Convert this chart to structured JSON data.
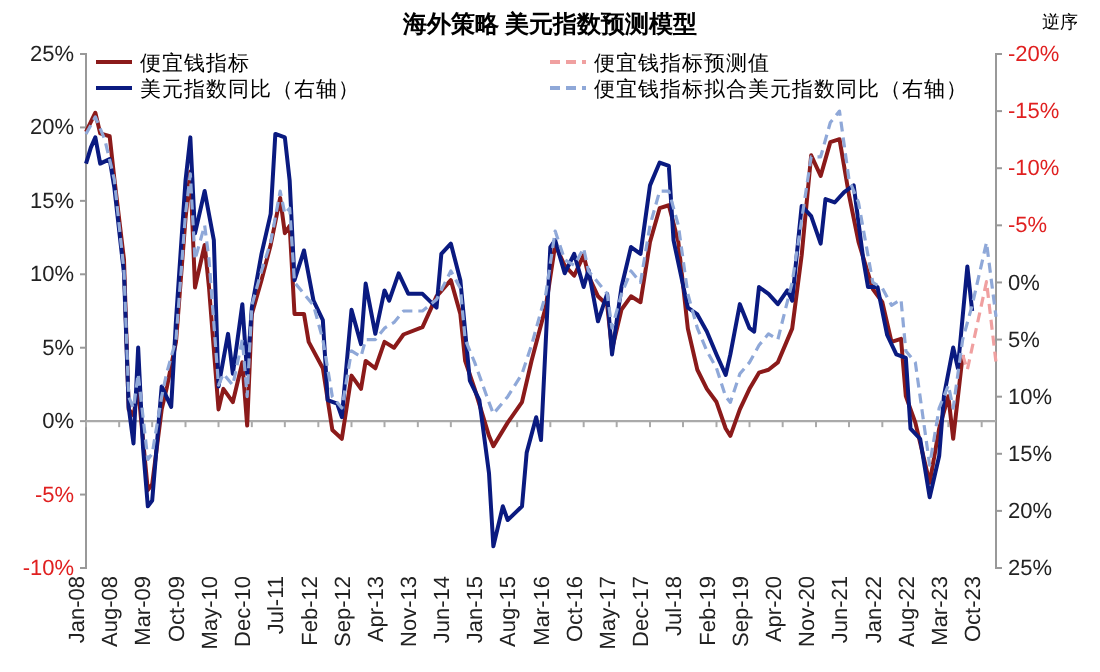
{
  "chart_data": {
    "type": "line",
    "title": "海外策略 美元指数预测模型",
    "y2label": "逆序",
    "legend": "top",
    "grid": false,
    "ref_lines": [
      {
        "axis": "y",
        "value": 0,
        "color": "#aaaaaa"
      }
    ],
    "xlim": [
      "2008-01",
      "2024-01"
    ],
    "xticks": [
      {
        "value": "2008-01",
        "label": "Jan-08"
      },
      {
        "value": "2008-08",
        "label": "Aug-08"
      },
      {
        "value": "2009-03",
        "label": "Mar-09"
      },
      {
        "value": "2009-10",
        "label": "Oct-09"
      },
      {
        "value": "2010-05",
        "label": "May-10"
      },
      {
        "value": "2010-12",
        "label": "Dec-10"
      },
      {
        "value": "2011-07",
        "label": "Jul-11"
      },
      {
        "value": "2012-02",
        "label": "Feb-12"
      },
      {
        "value": "2012-09",
        "label": "Sep-12"
      },
      {
        "value": "2013-04",
        "label": "Apr-13"
      },
      {
        "value": "2013-11",
        "label": "Nov-13"
      },
      {
        "value": "2014-06",
        "label": "Jun-14"
      },
      {
        "value": "2015-01",
        "label": "Jan-15"
      },
      {
        "value": "2015-08",
        "label": "Aug-15"
      },
      {
        "value": "2016-03",
        "label": "Mar-16"
      },
      {
        "value": "2016-10",
        "label": "Oct-16"
      },
      {
        "value": "2017-05",
        "label": "May-17"
      },
      {
        "value": "2017-12",
        "label": "Dec-17"
      },
      {
        "value": "2018-07",
        "label": "Jul-18"
      },
      {
        "value": "2019-02",
        "label": "Feb-19"
      },
      {
        "value": "2019-09",
        "label": "Sep-19"
      },
      {
        "value": "2020-04",
        "label": "Apr-20"
      },
      {
        "value": "2020-11",
        "label": "Nov-20"
      },
      {
        "value": "2021-06",
        "label": "Jun-21"
      },
      {
        "value": "2022-01",
        "label": "Jan-22"
      },
      {
        "value": "2022-08",
        "label": "Aug-22"
      },
      {
        "value": "2023-03",
        "label": "Mar-23"
      },
      {
        "value": "2023-10",
        "label": "Oct-23"
      }
    ],
    "ylim": [
      -10,
      25
    ],
    "yticks": [
      {
        "value": 25,
        "label": "25%"
      },
      {
        "value": 20,
        "label": "20%"
      },
      {
        "value": 15,
        "label": "15%"
      },
      {
        "value": 10,
        "label": "10%"
      },
      {
        "value": 5,
        "label": "5%"
      },
      {
        "value": 0,
        "label": "0%"
      },
      {
        "value": -5,
        "label": "-5%"
      },
      {
        "value": -10,
        "label": "-10%"
      }
    ],
    "y2lim": [
      25,
      -20
    ],
    "y2ticks": [
      {
        "value": -20,
        "label": "-20%"
      },
      {
        "value": -15,
        "label": "-15%"
      },
      {
        "value": -10,
        "label": "-10%"
      },
      {
        "value": -5,
        "label": "-5%"
      },
      {
        "value": 0,
        "label": "0%"
      },
      {
        "value": 5,
        "label": "5%"
      },
      {
        "value": 10,
        "label": "10%"
      },
      {
        "value": 15,
        "label": "15%"
      },
      {
        "value": 20,
        "label": "20%"
      },
      {
        "value": 25,
        "label": "25%"
      }
    ],
    "series": [
      {
        "name": "便宜钱指标",
        "color": "#8b1a1a",
        "line_style": "solid",
        "x": [
          "2008-01",
          "2008-03",
          "2008-04",
          "2008-06",
          "2008-07",
          "2008-09",
          "2008-10",
          "2008-11",
          "2008-12",
          "2009-02",
          "2009-03",
          "2009-05",
          "2009-06",
          "2009-08",
          "2009-10",
          "2009-11",
          "2009-12",
          "2010-02",
          "2010-03",
          "2010-05",
          "2010-06",
          "2010-08",
          "2010-10",
          "2010-11",
          "2010-12",
          "2011-02",
          "2011-04",
          "2011-06",
          "2011-07",
          "2011-08",
          "2011-09",
          "2011-11",
          "2011-12",
          "2012-03",
          "2012-05",
          "2012-07",
          "2012-09",
          "2012-11",
          "2012-12",
          "2013-02",
          "2013-04",
          "2013-06",
          "2013-08",
          "2013-12",
          "2014-03",
          "2014-06",
          "2014-08",
          "2014-09",
          "2014-11",
          "2015-02",
          "2015-03",
          "2015-06",
          "2015-09",
          "2015-11",
          "2016-02",
          "2016-04",
          "2016-06",
          "2016-08",
          "2016-10",
          "2016-11",
          "2017-01",
          "2017-03",
          "2017-04",
          "2017-06",
          "2017-08",
          "2017-10",
          "2017-12",
          "2018-02",
          "2018-04",
          "2018-06",
          "2018-08",
          "2018-10",
          "2018-12",
          "2019-02",
          "2019-04",
          "2019-05",
          "2019-07",
          "2019-09",
          "2019-11",
          "2020-01",
          "2020-03",
          "2020-06",
          "2020-08",
          "2020-10",
          "2020-12",
          "2021-02",
          "2021-04",
          "2021-06",
          "2021-08",
          "2021-11",
          "2022-01",
          "2022-03",
          "2022-05",
          "2022-06",
          "2022-08",
          "2022-11",
          "2023-01",
          "2023-03",
          "2023-04",
          "2023-06"
        ],
        "values": [
          19.7,
          21,
          19.6,
          19.4,
          16.5,
          11,
          0.8,
          0.4,
          2.2,
          -4.7,
          -4.3,
          0.8,
          2.2,
          5.4,
          13.8,
          17,
          9.1,
          12,
          9.1,
          0.8,
          2.2,
          1.3,
          4,
          -0.3,
          7.3,
          9.6,
          12,
          15.2,
          12.8,
          13.3,
          7.3,
          7.3,
          5.4,
          3.6,
          -0.6,
          -1.2,
          3.1,
          2.2,
          4.1,
          3.6,
          5.4,
          5,
          5.9,
          6.4,
          8.5,
          9.6,
          7.3,
          4.1,
          2.2,
          -1,
          -1.7,
          -0.1,
          1.3,
          4.1,
          7.8,
          12,
          10.6,
          9.9,
          11.3,
          9.9,
          8.5,
          7.9,
          4.9,
          7.6,
          8.5,
          8.1,
          12.2,
          14.5,
          14.7,
          12.2,
          6.3,
          3.5,
          2.2,
          1.3,
          -0.5,
          -1,
          0.8,
          2.2,
          3.3,
          3.5,
          4,
          6.3,
          11.3,
          18.1,
          16.7,
          19,
          19.2,
          15.4,
          12.2,
          9,
          8.1,
          5.4,
          5.6,
          1.7,
          -0.1,
          -4.2,
          -0.5,
          1.7,
          -1.2,
          4.5
        ]
      },
      {
        "name": "便宜钱指标预测值",
        "color": "#f0a0a0",
        "line_style": "dashed",
        "x": [
          "2023-06",
          "2023-07",
          "2023-11",
          "2024-01"
        ],
        "values": [
          4.5,
          3.5,
          9.5,
          4
        ]
      },
      {
        "name": "美元指数同比（右轴）",
        "color": "#0a1a80",
        "line_style": "solid",
        "axis": "y2",
        "x": [
          "2008-01",
          "2008-02",
          "2008-03",
          "2008-04",
          "2008-06",
          "2008-07",
          "2008-09",
          "2008-10",
          "2008-11",
          "2008-12",
          "2009-01",
          "2009-02",
          "2009-03",
          "2009-05",
          "2009-07",
          "2009-08",
          "2009-10",
          "2009-11",
          "2009-12",
          "2010-02",
          "2010-04",
          "2010-05",
          "2010-07",
          "2010-08",
          "2010-10",
          "2010-11",
          "2010-12",
          "2011-02",
          "2011-04",
          "2011-05",
          "2011-07",
          "2011-08",
          "2011-09",
          "2011-11",
          "2012-01",
          "2012-03",
          "2012-04",
          "2012-06",
          "2012-07",
          "2012-09",
          "2012-11",
          "2012-12",
          "2013-02",
          "2013-04",
          "2013-05",
          "2013-07",
          "2013-09",
          "2013-12",
          "2014-03",
          "2014-04",
          "2014-06",
          "2014-08",
          "2014-10",
          "2014-12",
          "2015-02",
          "2015-03",
          "2015-05",
          "2015-06",
          "2015-09",
          "2015-10",
          "2015-12",
          "2016-01",
          "2016-03",
          "2016-04",
          "2016-06",
          "2016-08",
          "2016-10",
          "2016-11",
          "2017-01",
          "2017-03",
          "2017-04",
          "2017-06",
          "2017-08",
          "2017-10",
          "2017-12",
          "2018-02",
          "2018-04",
          "2018-05",
          "2018-08",
          "2018-10",
          "2018-12",
          "2019-02",
          "2019-04",
          "2019-05",
          "2019-07",
          "2019-09",
          "2019-10",
          "2019-11",
          "2020-01",
          "2020-03",
          "2020-05",
          "2020-06",
          "2020-08",
          "2020-10",
          "2020-12",
          "2021-01",
          "2021-03",
          "2021-05",
          "2021-07",
          "2021-09",
          "2021-10",
          "2021-12",
          "2022-02",
          "2022-04",
          "2022-06",
          "2022-07",
          "2022-09",
          "2022-11",
          "2023-01",
          "2023-02",
          "2023-04",
          "2023-05",
          "2023-07",
          "2023-08"
        ],
        "values": [
          -10.4,
          -11.8,
          -12.7,
          -10.4,
          -10.8,
          -8.3,
          -0.8,
          10.9,
          14.1,
          5.7,
          14.4,
          19.6,
          19.1,
          9.1,
          10.9,
          3.3,
          -8.9,
          -12.7,
          -4.3,
          -8,
          -3.7,
          9.1,
          4.5,
          8,
          1.9,
          8,
          2.2,
          -2.5,
          -6,
          -13,
          -12.7,
          -8.9,
          -0.2,
          -2.8,
          1.6,
          3.3,
          10.3,
          10.6,
          11.8,
          2.4,
          5.4,
          0.1,
          4.5,
          0.7,
          1.6,
          -0.8,
          1,
          1,
          2.2,
          -2.5,
          -3.4,
          -0.2,
          8.6,
          10.3,
          16.7,
          23.1,
          19.6,
          20.8,
          19.6,
          14.9,
          11.8,
          13.8,
          -3.1,
          -3.7,
          -0.8,
          -2.5,
          0.4,
          -1.1,
          3.4,
          1,
          6.3,
          0.4,
          -3.1,
          -2.5,
          -8.5,
          -10.5,
          -10.2,
          -3.7,
          2.2,
          2.8,
          4.3,
          6.3,
          8.1,
          6.3,
          1.9,
          4,
          4.3,
          0.4,
          1,
          1.9,
          0.7,
          1.6,
          -6.7,
          -5.8,
          -3.4,
          -7.3,
          -7,
          -7.9,
          -8.5,
          -2,
          0.4,
          0.4,
          4.6,
          6.3,
          6.6,
          12.8,
          13.7,
          18.8,
          15.2,
          9.9,
          5.7,
          7.5,
          -1.4,
          2.5
        ]
      },
      {
        "name": "便宜钱指标拟合美元指数同比（右轴）",
        "color": "#8fa8d8",
        "line_style": "dashed",
        "axis": "y2",
        "x": [
          "2008-01",
          "2008-03",
          "2008-05",
          "2008-07",
          "2008-09",
          "2008-10",
          "2008-11",
          "2008-12",
          "2009-02",
          "2009-03",
          "2009-05",
          "2009-06",
          "2009-08",
          "2009-10",
          "2009-11",
          "2009-12",
          "2010-02",
          "2010-03",
          "2010-05",
          "2010-06",
          "2010-08",
          "2010-10",
          "2010-11",
          "2010-12",
          "2011-02",
          "2011-04",
          "2011-06",
          "2011-07",
          "2011-08",
          "2011-09",
          "2011-11",
          "2012-01",
          "2012-03",
          "2012-05",
          "2012-07",
          "2012-09",
          "2012-11",
          "2012-12",
          "2013-02",
          "2013-04",
          "2013-06",
          "2013-08",
          "2013-12",
          "2014-03",
          "2014-06",
          "2014-08",
          "2014-09",
          "2014-11",
          "2015-02",
          "2015-03",
          "2015-06",
          "2015-09",
          "2015-11",
          "2016-02",
          "2016-04",
          "2016-06",
          "2016-08",
          "2016-10",
          "2016-11",
          "2017-01",
          "2017-03",
          "2017-04",
          "2017-06",
          "2017-08",
          "2017-10",
          "2017-12",
          "2018-02",
          "2018-04",
          "2018-06",
          "2018-08",
          "2018-10",
          "2018-12",
          "2019-02",
          "2019-04",
          "2019-05",
          "2019-07",
          "2019-09",
          "2019-11",
          "2020-01",
          "2020-03",
          "2020-06",
          "2020-08",
          "2020-10",
          "2020-12",
          "2021-02",
          "2021-04",
          "2021-06",
          "2021-08",
          "2021-11",
          "2022-01",
          "2022-03",
          "2022-05",
          "2022-06",
          "2022-08",
          "2022-11",
          "2023-01",
          "2023-03",
          "2023-04",
          "2023-06",
          "2023-08",
          "2023-11",
          "2024-01"
        ],
        "values": [
          -13,
          -14.5,
          -12.5,
          -9,
          -1,
          10,
          11,
          8,
          15.5,
          15,
          10,
          8,
          5,
          -6,
          -9.5,
          -2,
          -5,
          -2,
          9,
          8,
          9,
          5,
          10,
          2,
          -1,
          -3.5,
          -8,
          -6,
          -6.5,
          0,
          1,
          2,
          5,
          10,
          11,
          6,
          6.5,
          5,
          5,
          4,
          3.5,
          2.5,
          2.5,
          1.5,
          -1,
          0.5,
          5,
          7,
          10.5,
          11.5,
          10,
          8,
          5.5,
          1,
          -4.5,
          -2,
          -1.5,
          -3,
          -1,
          0,
          1,
          4,
          1,
          -1,
          0,
          -5,
          -8,
          -8,
          -5,
          1,
          4,
          6,
          7.5,
          10,
          10.5,
          8,
          7,
          5.5,
          4.5,
          5,
          0,
          -5.5,
          -11,
          -11,
          -14,
          -15,
          -9,
          -7,
          0,
          0.5,
          2,
          1.5,
          6,
          7,
          16,
          11,
          9,
          11,
          5,
          2,
          -3.5,
          3
        ]
      }
    ]
  }
}
